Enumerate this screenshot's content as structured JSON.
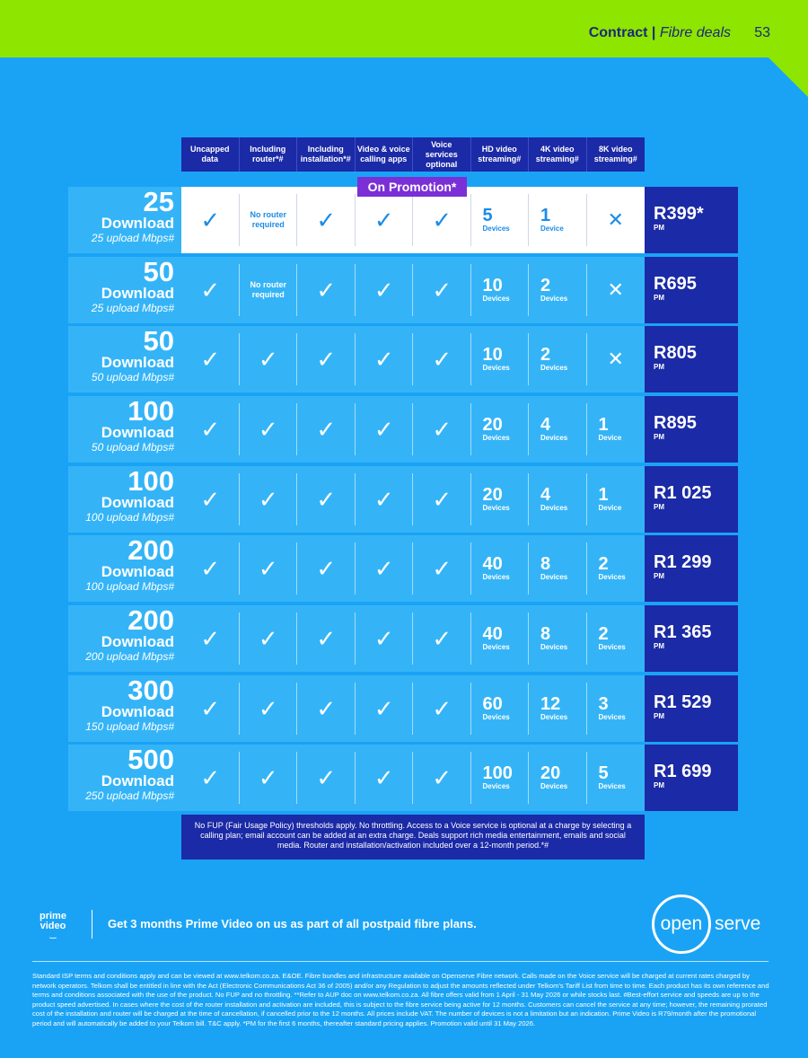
{
  "header": {
    "section": "Contract",
    "separator": " | ",
    "sub": "Fibre deals",
    "page": "53"
  },
  "columns": [
    "Uncapped data",
    "Including router*#",
    "Including installation*#",
    "Video & voice calling apps",
    "Voice services optional",
    "HD video streaming#",
    "4K video streaming#",
    "8K video streaming#"
  ],
  "promo_label": "On Promotion*",
  "plans": [
    {
      "speed": "25",
      "down": "Download",
      "up": "25 upload Mbps#",
      "router": "No router required",
      "router_included": false,
      "hd": "5",
      "hd_lbl": "Devices",
      "k4": "1",
      "k4_lbl": "Device",
      "k8": null,
      "k8_lbl": "",
      "price": "R399*",
      "pm": "PM",
      "promo": true
    },
    {
      "speed": "50",
      "down": "Download",
      "up": "25 upload Mbps#",
      "router": "No router required",
      "router_included": false,
      "hd": "10",
      "hd_lbl": "Devices",
      "k4": "2",
      "k4_lbl": "Devices",
      "k8": null,
      "k8_lbl": "",
      "price": "R695",
      "pm": "PM",
      "promo": false
    },
    {
      "speed": "50",
      "down": "Download",
      "up": "50 upload Mbps#",
      "router": "",
      "router_included": true,
      "hd": "10",
      "hd_lbl": "Devices",
      "k4": "2",
      "k4_lbl": "Devices",
      "k8": null,
      "k8_lbl": "",
      "price": "R805",
      "pm": "PM",
      "promo": false
    },
    {
      "speed": "100",
      "down": "Download",
      "up": "50 upload Mbps#",
      "router": "",
      "router_included": true,
      "hd": "20",
      "hd_lbl": "Devices",
      "k4": "4",
      "k4_lbl": "Devices",
      "k8": "1",
      "k8_lbl": "Device",
      "price": "R895",
      "pm": "PM",
      "promo": false
    },
    {
      "speed": "100",
      "down": "Download",
      "up": "100 upload Mbps#",
      "router": "",
      "router_included": true,
      "hd": "20",
      "hd_lbl": "Devices",
      "k4": "4",
      "k4_lbl": "Devices",
      "k8": "1",
      "k8_lbl": "Device",
      "price": "R1 025",
      "pm": "PM",
      "promo": false
    },
    {
      "speed": "200",
      "down": "Download",
      "up": "100 upload Mbps#",
      "router": "",
      "router_included": true,
      "hd": "40",
      "hd_lbl": "Devices",
      "k4": "8",
      "k4_lbl": "Devices",
      "k8": "2",
      "k8_lbl": "Devices",
      "price": "R1 299",
      "pm": "PM",
      "promo": false
    },
    {
      "speed": "200",
      "down": "Download",
      "up": "200 upload Mbps#",
      "router": "",
      "router_included": true,
      "hd": "40",
      "hd_lbl": "Devices",
      "k4": "8",
      "k4_lbl": "Devices",
      "k8": "2",
      "k8_lbl": "Devices",
      "price": "R1 365",
      "pm": "PM",
      "promo": false
    },
    {
      "speed": "300",
      "down": "Download",
      "up": "150 upload Mbps#",
      "router": "",
      "router_included": true,
      "hd": "60",
      "hd_lbl": "Devices",
      "k4": "12",
      "k4_lbl": "Devices",
      "k8": "3",
      "k8_lbl": "Devices",
      "price": "R1 529",
      "pm": "PM",
      "promo": false
    },
    {
      "speed": "500",
      "down": "Download",
      "up": "250 upload Mbps#",
      "router": "",
      "router_included": true,
      "hd": "100",
      "hd_lbl": "Devices",
      "k4": "20",
      "k4_lbl": "Devices",
      "k8": "5",
      "k8_lbl": "Devices",
      "price": "R1 699",
      "pm": "PM",
      "promo": false
    }
  ],
  "notes": "No FUP (Fair Usage Policy) thresholds apply. No throttling. Access to a Voice service is optional at a charge by selecting a calling plan; email account can be added at an extra charge. Deals support rich media entertainment, emails and social media. Router and installation/activation included over a 12-month period.*#",
  "prime": {
    "logo_top": "prime",
    "logo_bottom": "video",
    "text": "Get 3 months Prime Video on us as part of all postpaid fibre plans."
  },
  "openserve": {
    "open": "open",
    "serve": "serve"
  },
  "legal": "Standard ISP terms and conditions apply and can be viewed at www.telkom.co.za. E&OE. Fibre bundles and infrastructure available on Openserve Fibre network. Calls made on the Voice service will be charged at current rates charged by network operators. Telkom shall be entitled in line with the Act (Electronic Communications Act 36 of 2005) and/or any Regulation to adjust the amounts reflected under Telkom's Tariff List from time to time. Each product has its own reference and terms and conditions associated with the use of the product. No FUP and no throttling. **Refer to AUP doc on www.telkom.co.za. All fibre offers valid from 1 April - 31 May 2026 or while stocks last. #Best-effort service and speeds are up to the product speed advertised. In cases where the cost of the router installation and activation are included, this is subject to the fibre service being active for 12 months. Customers can cancel the service at any time; however, the remaining prorated cost of the installation and router will be charged at the time of cancellation, if cancelled prior to the 12 months. All prices include VAT. The number of devices is not a limitation but an indication. Prime Video is R79/month after the promotional period and will automatically be added to your Telkom bill. T&C apply. *PM for the first 6 months, thereafter standard pricing applies. Promotion valid until 31 May 2026.",
  "colors": {
    "background": "#1aa3f5",
    "accent_green": "#8ee500",
    "navy": "#1b2aa6",
    "promo_purple": "#7b2fd6"
  },
  "icons": {
    "check": "check-icon",
    "cross": "cross-icon"
  }
}
